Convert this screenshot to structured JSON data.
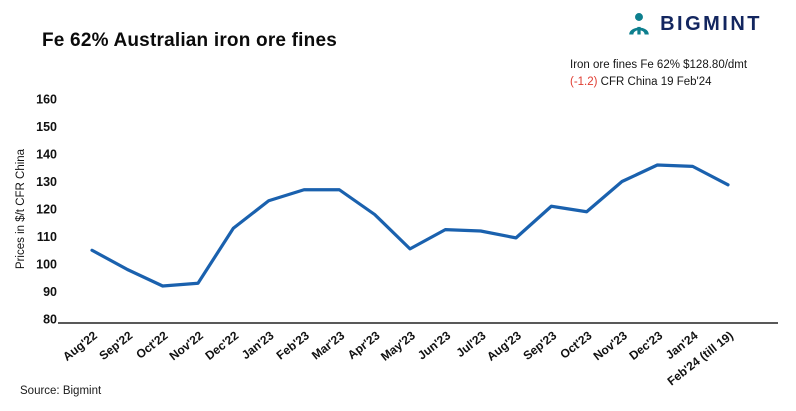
{
  "header": {
    "title": "Fe 62% Australian iron ore fines",
    "logo_text": "BIGMINT"
  },
  "annotation": {
    "line1": "Iron ore fines Fe 62% $128.80/dmt",
    "change": "(-1.2)",
    "line2_rest": " CFR China 19 Feb'24"
  },
  "footer": {
    "source": "Source: Bigmint"
  },
  "colors": {
    "line": "#1a61ae",
    "change_negative": "#e03c31",
    "logo_icon": "#0d7f8e",
    "logo_text": "#13265f",
    "axis": "#222222"
  },
  "chart_data": {
    "type": "line",
    "title": "Fe 62% Australian iron ore fines",
    "xlabel": "",
    "ylabel": "Prices in $/t CFR China",
    "ylim": [
      80,
      160
    ],
    "ytick_step": 10,
    "grid": false,
    "legend": "none",
    "categories": [
      "Aug'22",
      "Sep'22",
      "Oct'22",
      "Nov'22",
      "Dec'22",
      "Jan'23",
      "Feb'23",
      "Mar'23",
      "Apr'23",
      "May'23",
      "Jun'23",
      "Jul'23",
      "Aug'23",
      "Sep'23",
      "Oct'23",
      "Nov'23",
      "Dec'23",
      "Jan'24",
      "Feb'24 (till 19)"
    ],
    "series": [
      {
        "name": "Iron ore fines Fe 62% CFR China",
        "values": [
          105,
          98,
          92,
          93,
          113,
          123,
          127,
          127,
          118,
          105.5,
          112.5,
          112,
          109.5,
          121,
          119,
          130,
          136,
          135.5,
          128.8
        ]
      }
    ]
  }
}
